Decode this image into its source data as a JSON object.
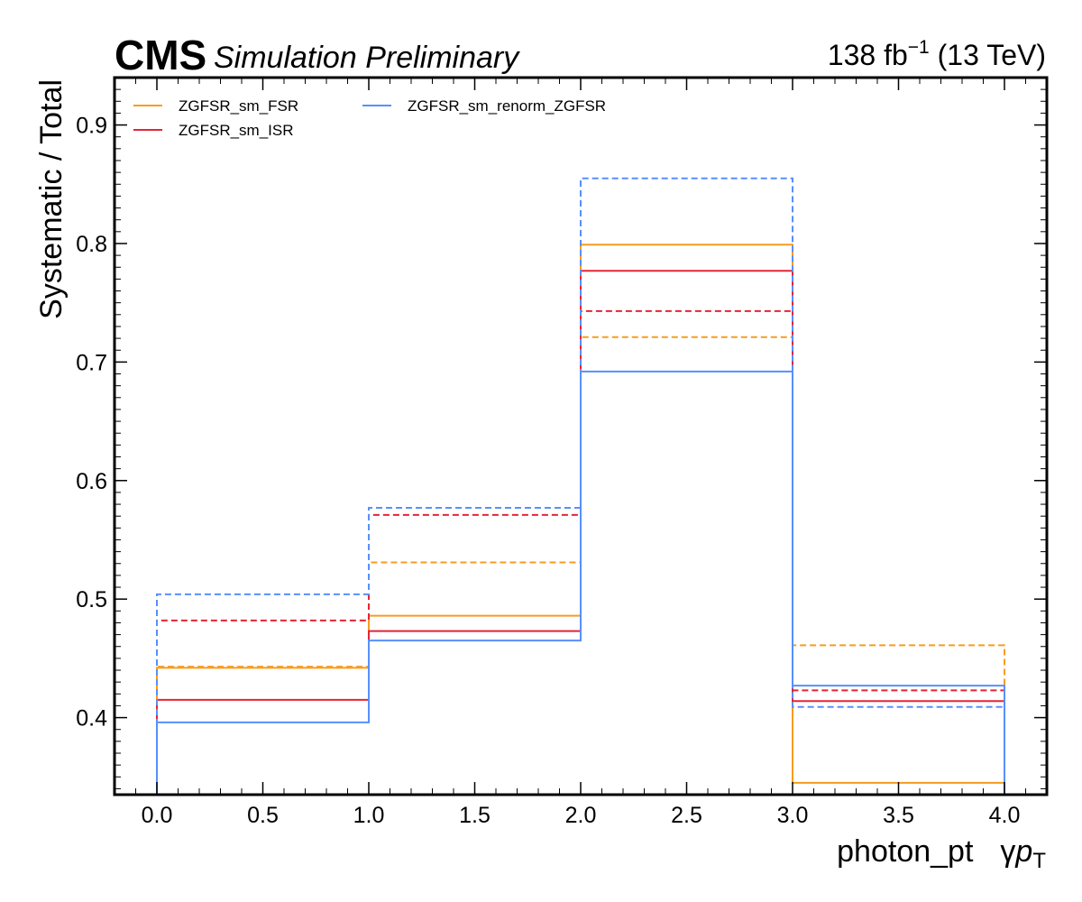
{
  "header": {
    "experiment": "CMS",
    "status": "Simulation Preliminary",
    "lumi_value": "138 fb",
    "lumi_exp": "−1",
    "lumi_energy": " (13 TeV)"
  },
  "chart_data": {
    "type": "step",
    "xlabel_text": "photon_pt",
    "xlabel_symbol_gamma": "γ",
    "xlabel_symbol_p": "p",
    "xlabel_symbol_sub": "T",
    "ylabel": "Systematic / Total",
    "xlim": [
      -0.2,
      4.2
    ],
    "ylim": [
      0.335,
      0.94
    ],
    "x_ticks": [
      "0.0",
      "0.5",
      "1.0",
      "1.5",
      "2.0",
      "2.5",
      "3.0",
      "3.5",
      "4.0"
    ],
    "y_ticks": [
      "0.4",
      "0.5",
      "0.6",
      "0.7",
      "0.8",
      "0.9"
    ],
    "bin_edges": [
      0,
      1,
      2,
      3,
      4
    ],
    "legend_position": "top-left",
    "series": [
      {
        "name": "ZGFSR_sm_FSR",
        "color": "#f89c20",
        "style": "solid",
        "values": [
          0.442,
          0.486,
          0.799,
          0.345
        ]
      },
      {
        "color": "#f89c20",
        "style": "dashed",
        "values": [
          0.443,
          0.531,
          0.721,
          0.461
        ]
      },
      {
        "name": "ZGFSR_sm_ISR",
        "color": "#e42536",
        "style": "solid",
        "values": [
          0.415,
          0.473,
          0.777,
          0.414
        ]
      },
      {
        "color": "#e42536",
        "style": "dashed",
        "values": [
          0.482,
          0.571,
          0.743,
          0.423
        ]
      },
      {
        "name": "ZGFSR_sm_renorm_ZGFSR",
        "color": "#5790fc",
        "style": "solid",
        "values": [
          0.396,
          0.465,
          0.692,
          0.427
        ]
      },
      {
        "color": "#5790fc",
        "style": "dashed",
        "values": [
          0.504,
          0.577,
          0.855,
          0.409
        ]
      }
    ]
  }
}
